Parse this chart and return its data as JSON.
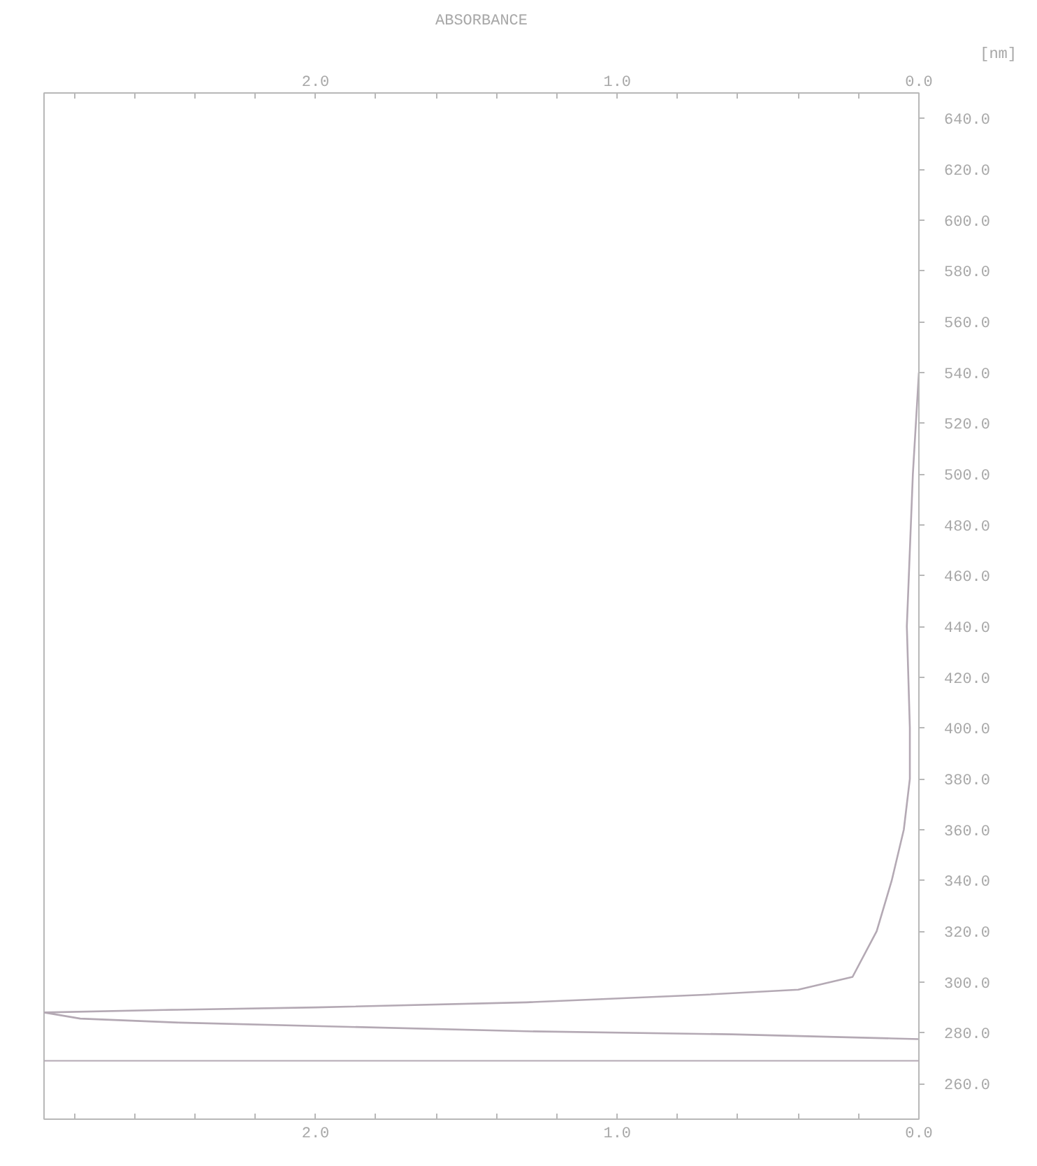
{
  "chart_data": {
    "type": "line",
    "title": "ABSORBANCE",
    "ylabel": "[nm]",
    "x": [
      0.0,
      0.02,
      0.04,
      0.03,
      0.03,
      0.05,
      0.09,
      0.14,
      0.22,
      0.4,
      0.71,
      1.3,
      2.0,
      2.5,
      2.9,
      2.78,
      2.45,
      1.3,
      0.62,
      0.09,
      0.0
    ],
    "values": [
      540,
      500,
      440,
      400,
      380,
      360,
      340,
      320,
      302,
      297,
      295,
      292,
      290,
      289,
      288,
      285.6,
      284,
      280.6,
      279.4,
      277.8,
      277.5
    ],
    "color": "#b4a9b4",
    "xlim": [
      2.9,
      0.0
    ],
    "xticks": [
      {
        "value": 2.8,
        "label": null
      },
      {
        "value": 2.6,
        "label": null
      },
      {
        "value": 2.4,
        "label": null
      },
      {
        "value": 2.2,
        "label": null
      },
      {
        "value": 2.0,
        "label": "2.0"
      },
      {
        "value": 1.8,
        "label": null
      },
      {
        "value": 1.6,
        "label": null
      },
      {
        "value": 1.4,
        "label": null
      },
      {
        "value": 1.2,
        "label": null
      },
      {
        "value": 1.0,
        "label": "1.0"
      },
      {
        "value": 0.8,
        "label": null
      },
      {
        "value": 0.6,
        "label": null
      },
      {
        "value": 0.4,
        "label": null
      },
      {
        "value": 0.2,
        "label": null
      },
      {
        "value": 0.0,
        "label": "0.0"
      }
    ],
    "x2lim": [
      2.9,
      0.0
    ],
    "x2ticks": [
      {
        "value": 2.8,
        "label": null
      },
      {
        "value": 2.6,
        "label": null
      },
      {
        "value": 2.4,
        "label": null
      },
      {
        "value": 2.2,
        "label": null
      },
      {
        "value": 2.0,
        "label": "2.0"
      },
      {
        "value": 1.8,
        "label": null
      },
      {
        "value": 1.6,
        "label": null
      },
      {
        "value": 1.4,
        "label": null
      },
      {
        "value": 1.2,
        "label": null
      },
      {
        "value": 1.0,
        "label": "1.0"
      },
      {
        "value": 0.8,
        "label": null
      },
      {
        "value": 0.6,
        "label": null
      },
      {
        "value": 0.4,
        "label": null
      },
      {
        "value": 0.2,
        "label": null
      },
      {
        "value": 0.0,
        "label": "0.0"
      }
    ],
    "ylim": [
      246,
      650
    ],
    "yticks": [
      {
        "value": 260,
        "label": "260.0"
      },
      {
        "value": 280,
        "label": "280.0"
      },
      {
        "value": 300,
        "label": "300.0"
      },
      {
        "value": 320,
        "label": "320.0"
      },
      {
        "value": 340,
        "label": "340.0"
      },
      {
        "value": 360,
        "label": "360.0"
      },
      {
        "value": 380,
        "label": "380.0"
      },
      {
        "value": 400,
        "label": "400.0"
      },
      {
        "value": 420,
        "label": "420.0"
      },
      {
        "value": 440,
        "label": "440.0"
      },
      {
        "value": 460,
        "label": "460.0"
      },
      {
        "value": 480,
        "label": "480.0"
      },
      {
        "value": 500,
        "label": "500.0"
      },
      {
        "value": 520,
        "label": "520.0"
      },
      {
        "value": 540,
        "label": "540.0"
      },
      {
        "value": 560,
        "label": "560.0"
      },
      {
        "value": 580,
        "label": "580.0"
      },
      {
        "value": 600,
        "label": "600.0"
      },
      {
        "value": 620,
        "label": "620.0"
      },
      {
        "value": 640,
        "label": "640.0"
      }
    ],
    "ref_lines": [
      {
        "axis": "y",
        "value": 269,
        "label": null
      }
    ],
    "grid": false,
    "marker": "none",
    "line_style": "solid"
  }
}
